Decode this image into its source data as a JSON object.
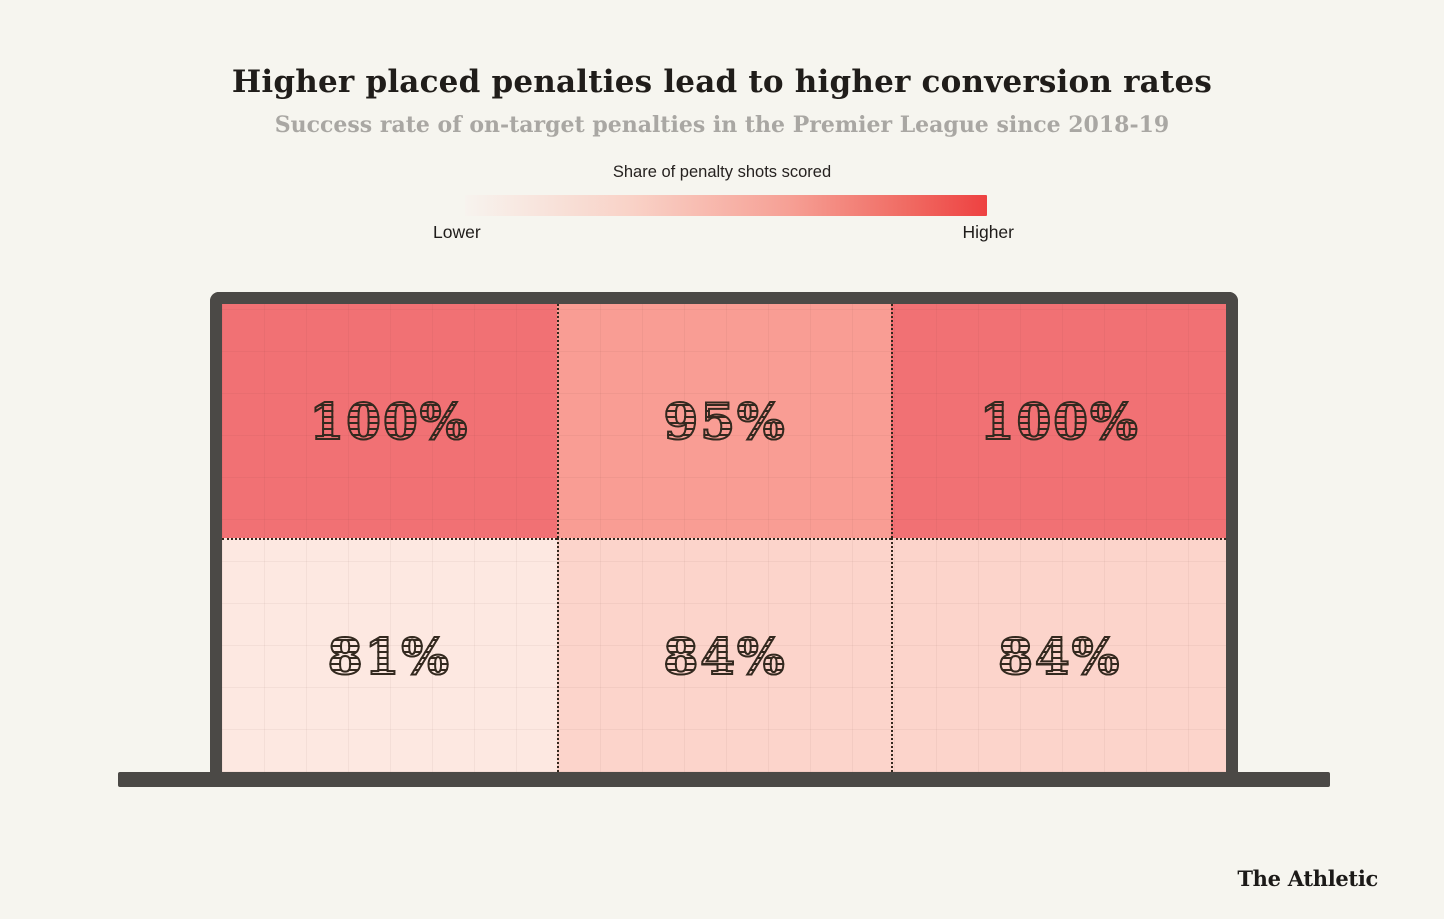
{
  "page": {
    "background_color": "#f6f5ef"
  },
  "header": {
    "title": "Higher placed penalties lead to higher conversion rates",
    "subtitle": "Success rate of on-target penalties in the Premier League since 2018-19"
  },
  "legend": {
    "label": "Share of penalty shots scored",
    "min_label": "Lower",
    "max_label": "Higher",
    "gradient_stops": [
      "#f7f3ee 0%",
      "#f9d2c7 32%",
      "#f6a095 62%",
      "#f06a62 85%",
      "#ee4141 100%"
    ]
  },
  "goal": {
    "frame_color": "#4b4946",
    "divider_color": "#33271d"
  },
  "chart_data": {
    "type": "heatmap",
    "title": "Higher placed penalties lead to higher conversion rates",
    "subtitle": "Success rate of on-target penalties in the Premier League since 2018-19",
    "legend": {
      "label": "Share of penalty shots scored",
      "min_label": "Lower",
      "max_label": "Higher"
    },
    "layout_hint": "football goal mouth split into 2 rows x 3 columns; color encodes conversion rate",
    "grid": {
      "rows": 2,
      "cols": 3,
      "row_labels": [
        "Top",
        "Bottom"
      ],
      "col_labels": [
        "Left",
        "Middle",
        "Right"
      ]
    },
    "values_pct": [
      [
        100,
        95,
        100
      ],
      [
        81,
        84,
        84
      ]
    ],
    "cells": [
      {
        "row": "Top",
        "col": "Left",
        "value": 100,
        "display": "100%",
        "color": "#f17174"
      },
      {
        "row": "Top",
        "col": "Middle",
        "value": 95,
        "display": "95%",
        "color": "#f99d94"
      },
      {
        "row": "Top",
        "col": "Right",
        "value": 100,
        "display": "100%",
        "color": "#f17174"
      },
      {
        "row": "Bottom",
        "col": "Left",
        "value": 81,
        "display": "81%",
        "color": "#fde8e1"
      },
      {
        "row": "Bottom",
        "col": "Middle",
        "value": 84,
        "display": "84%",
        "color": "#fcd4cb"
      },
      {
        "row": "Bottom",
        "col": "Right",
        "value": 84,
        "display": "84%",
        "color": "#fcd4cb"
      }
    ]
  },
  "footer": {
    "brand": "The Athletic"
  }
}
